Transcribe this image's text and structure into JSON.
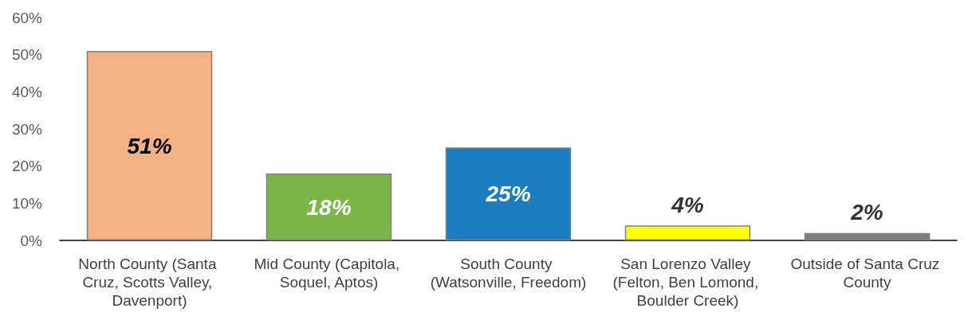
{
  "chart_data": {
    "type": "bar",
    "categories": [
      "North County (Santa Cruz, Scotts Valley, Davenport)",
      "Mid County (Capitola, Soquel, Aptos)",
      "South County (Watsonville, Freedom)",
      "San Lorenzo Valley (Felton, Ben Lomond, Boulder Creek)",
      "Outside of Santa Cruz County"
    ],
    "values": [
      51,
      18,
      25,
      4,
      2
    ],
    "colors": [
      "#f4b183",
      "#7ab648",
      "#1a7dc2",
      "#ffff00",
      "#7f7f7f"
    ],
    "value_labels": [
      "51%",
      "18%",
      "25%",
      "4%",
      "2%"
    ],
    "ylim": [
      0,
      60
    ],
    "yticks": [
      {
        "value": 0,
        "label": "0%"
      },
      {
        "value": 10,
        "label": "10%"
      },
      {
        "value": 20,
        "label": "20%"
      },
      {
        "value": 30,
        "label": "30%"
      },
      {
        "value": 40,
        "label": "40%"
      },
      {
        "value": 50,
        "label": "50%"
      },
      {
        "value": 60,
        "label": "60%"
      }
    ],
    "grid": false
  }
}
